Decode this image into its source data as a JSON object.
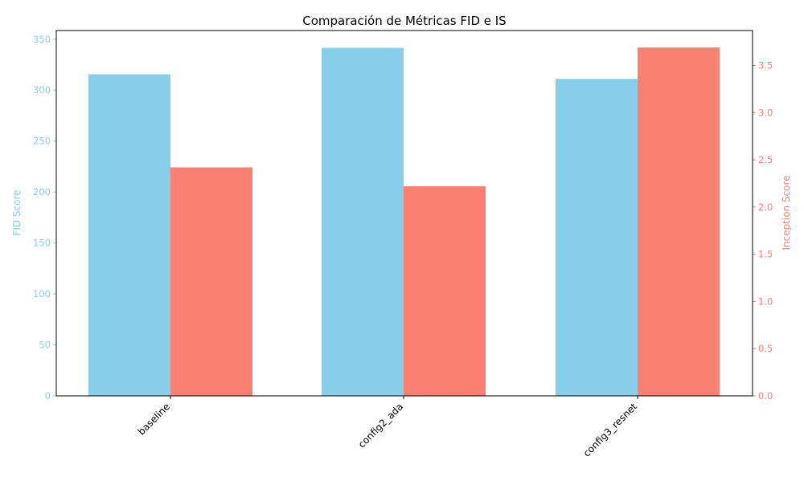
{
  "chart_data": {
    "type": "bar",
    "title": "Comparación de Métricas FID e IS",
    "categories": [
      "baseline",
      "config2_ada",
      "config3_resnet"
    ],
    "series": [
      {
        "name": "FID Score",
        "axis": "left",
        "color": "#87ceeb",
        "values": [
          315.5,
          341.5,
          311.0
        ]
      },
      {
        "name": "Inception Score",
        "axis": "right",
        "color": "#fa8072",
        "values": [
          2.42,
          2.22,
          3.69
        ]
      }
    ],
    "y_left": {
      "label": "FID Score",
      "color": "#87ceeb",
      "ylim": [
        0,
        358.5
      ],
      "ticks": [
        0,
        50,
        100,
        150,
        200,
        250,
        300,
        350
      ]
    },
    "y_right": {
      "label": "Inception Score",
      "color": "#fa8072",
      "ylim": [
        0,
        3.87
      ],
      "ticks": [
        "0.0",
        "0.5",
        "1.0",
        "1.5",
        "2.0",
        "2.5",
        "3.0",
        "3.5"
      ]
    },
    "xlabel": "",
    "grid": false,
    "legend": "none"
  }
}
